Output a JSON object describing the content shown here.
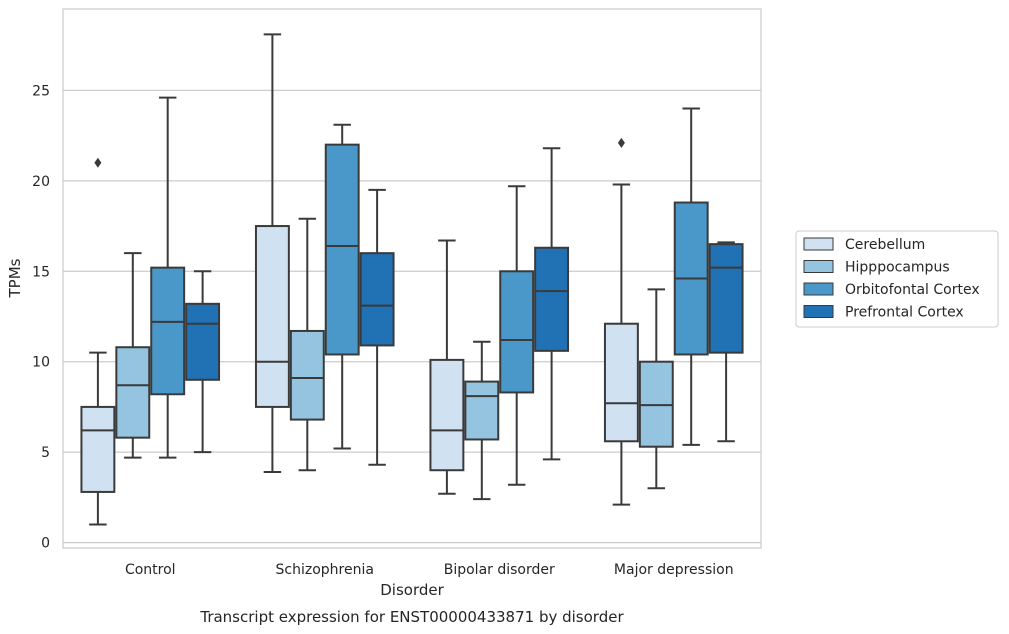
{
  "chart_data": {
    "type": "box",
    "title": "Transcript expression for ENST00000433871 by disorder",
    "xlabel": "Disorder",
    "ylabel": "TPMs",
    "ylim": [
      -0.3,
      29.5
    ],
    "yticks": [
      0,
      5,
      10,
      15,
      20,
      25
    ],
    "grid": "horizontal",
    "legend_position": "right",
    "categories": [
      "Control",
      "Schizophrenia",
      "Bipolar disorder",
      "Major depression"
    ],
    "series": [
      {
        "name": "Cerebellum",
        "color": "#d0e1f2",
        "boxes": [
          {
            "whisker_low": 1.0,
            "q1": 2.8,
            "median": 6.2,
            "q3": 7.5,
            "whisker_high": 10.5,
            "outliers": [
              21.0
            ]
          },
          {
            "whisker_low": 3.9,
            "q1": 7.5,
            "median": 10.0,
            "q3": 17.5,
            "whisker_high": 28.1,
            "outliers": []
          },
          {
            "whisker_low": 2.7,
            "q1": 4.0,
            "median": 6.2,
            "q3": 10.1,
            "whisker_high": 16.7,
            "outliers": []
          },
          {
            "whisker_low": 2.1,
            "q1": 5.6,
            "median": 7.7,
            "q3": 12.1,
            "whisker_high": 19.8,
            "outliers": [
              22.1
            ]
          }
        ]
      },
      {
        "name": "Hipppocampus",
        "color": "#94c4df",
        "boxes": [
          {
            "whisker_low": 4.7,
            "q1": 5.8,
            "median": 8.7,
            "q3": 10.8,
            "whisker_high": 16.0,
            "outliers": []
          },
          {
            "whisker_low": 4.0,
            "q1": 6.8,
            "median": 9.1,
            "q3": 11.7,
            "whisker_high": 17.9,
            "outliers": []
          },
          {
            "whisker_low": 2.4,
            "q1": 5.7,
            "median": 8.1,
            "q3": 8.9,
            "whisker_high": 11.1,
            "outliers": []
          },
          {
            "whisker_low": 3.0,
            "q1": 5.3,
            "median": 7.6,
            "q3": 10.0,
            "whisker_high": 14.0,
            "outliers": []
          }
        ]
      },
      {
        "name": "Orbitofontal Cortex",
        "color": "#4a98c9",
        "boxes": [
          {
            "whisker_low": 4.7,
            "q1": 8.2,
            "median": 12.2,
            "q3": 15.2,
            "whisker_high": 24.6,
            "outliers": []
          },
          {
            "whisker_low": 5.2,
            "q1": 10.4,
            "median": 16.4,
            "q3": 22.0,
            "whisker_high": 23.1,
            "outliers": []
          },
          {
            "whisker_low": 3.2,
            "q1": 8.3,
            "median": 11.2,
            "q3": 15.0,
            "whisker_high": 19.7,
            "outliers": []
          },
          {
            "whisker_low": 5.4,
            "q1": 10.4,
            "median": 14.6,
            "q3": 18.8,
            "whisker_high": 24.0,
            "outliers": []
          }
        ]
      },
      {
        "name": "Prefrontal Cortex",
        "color": "#2171b5",
        "boxes": [
          {
            "whisker_low": 5.0,
            "q1": 9.0,
            "median": 12.1,
            "q3": 13.2,
            "whisker_high": 15.0,
            "outliers": []
          },
          {
            "whisker_low": 4.3,
            "q1": 10.9,
            "median": 13.1,
            "q3": 16.0,
            "whisker_high": 19.5,
            "outliers": []
          },
          {
            "whisker_low": 4.6,
            "q1": 10.6,
            "median": 13.9,
            "q3": 16.3,
            "whisker_high": 21.8,
            "outliers": []
          },
          {
            "whisker_low": 5.6,
            "q1": 10.5,
            "median": 15.2,
            "q3": 16.5,
            "whisker_high": 16.6,
            "outliers": []
          }
        ]
      }
    ]
  }
}
